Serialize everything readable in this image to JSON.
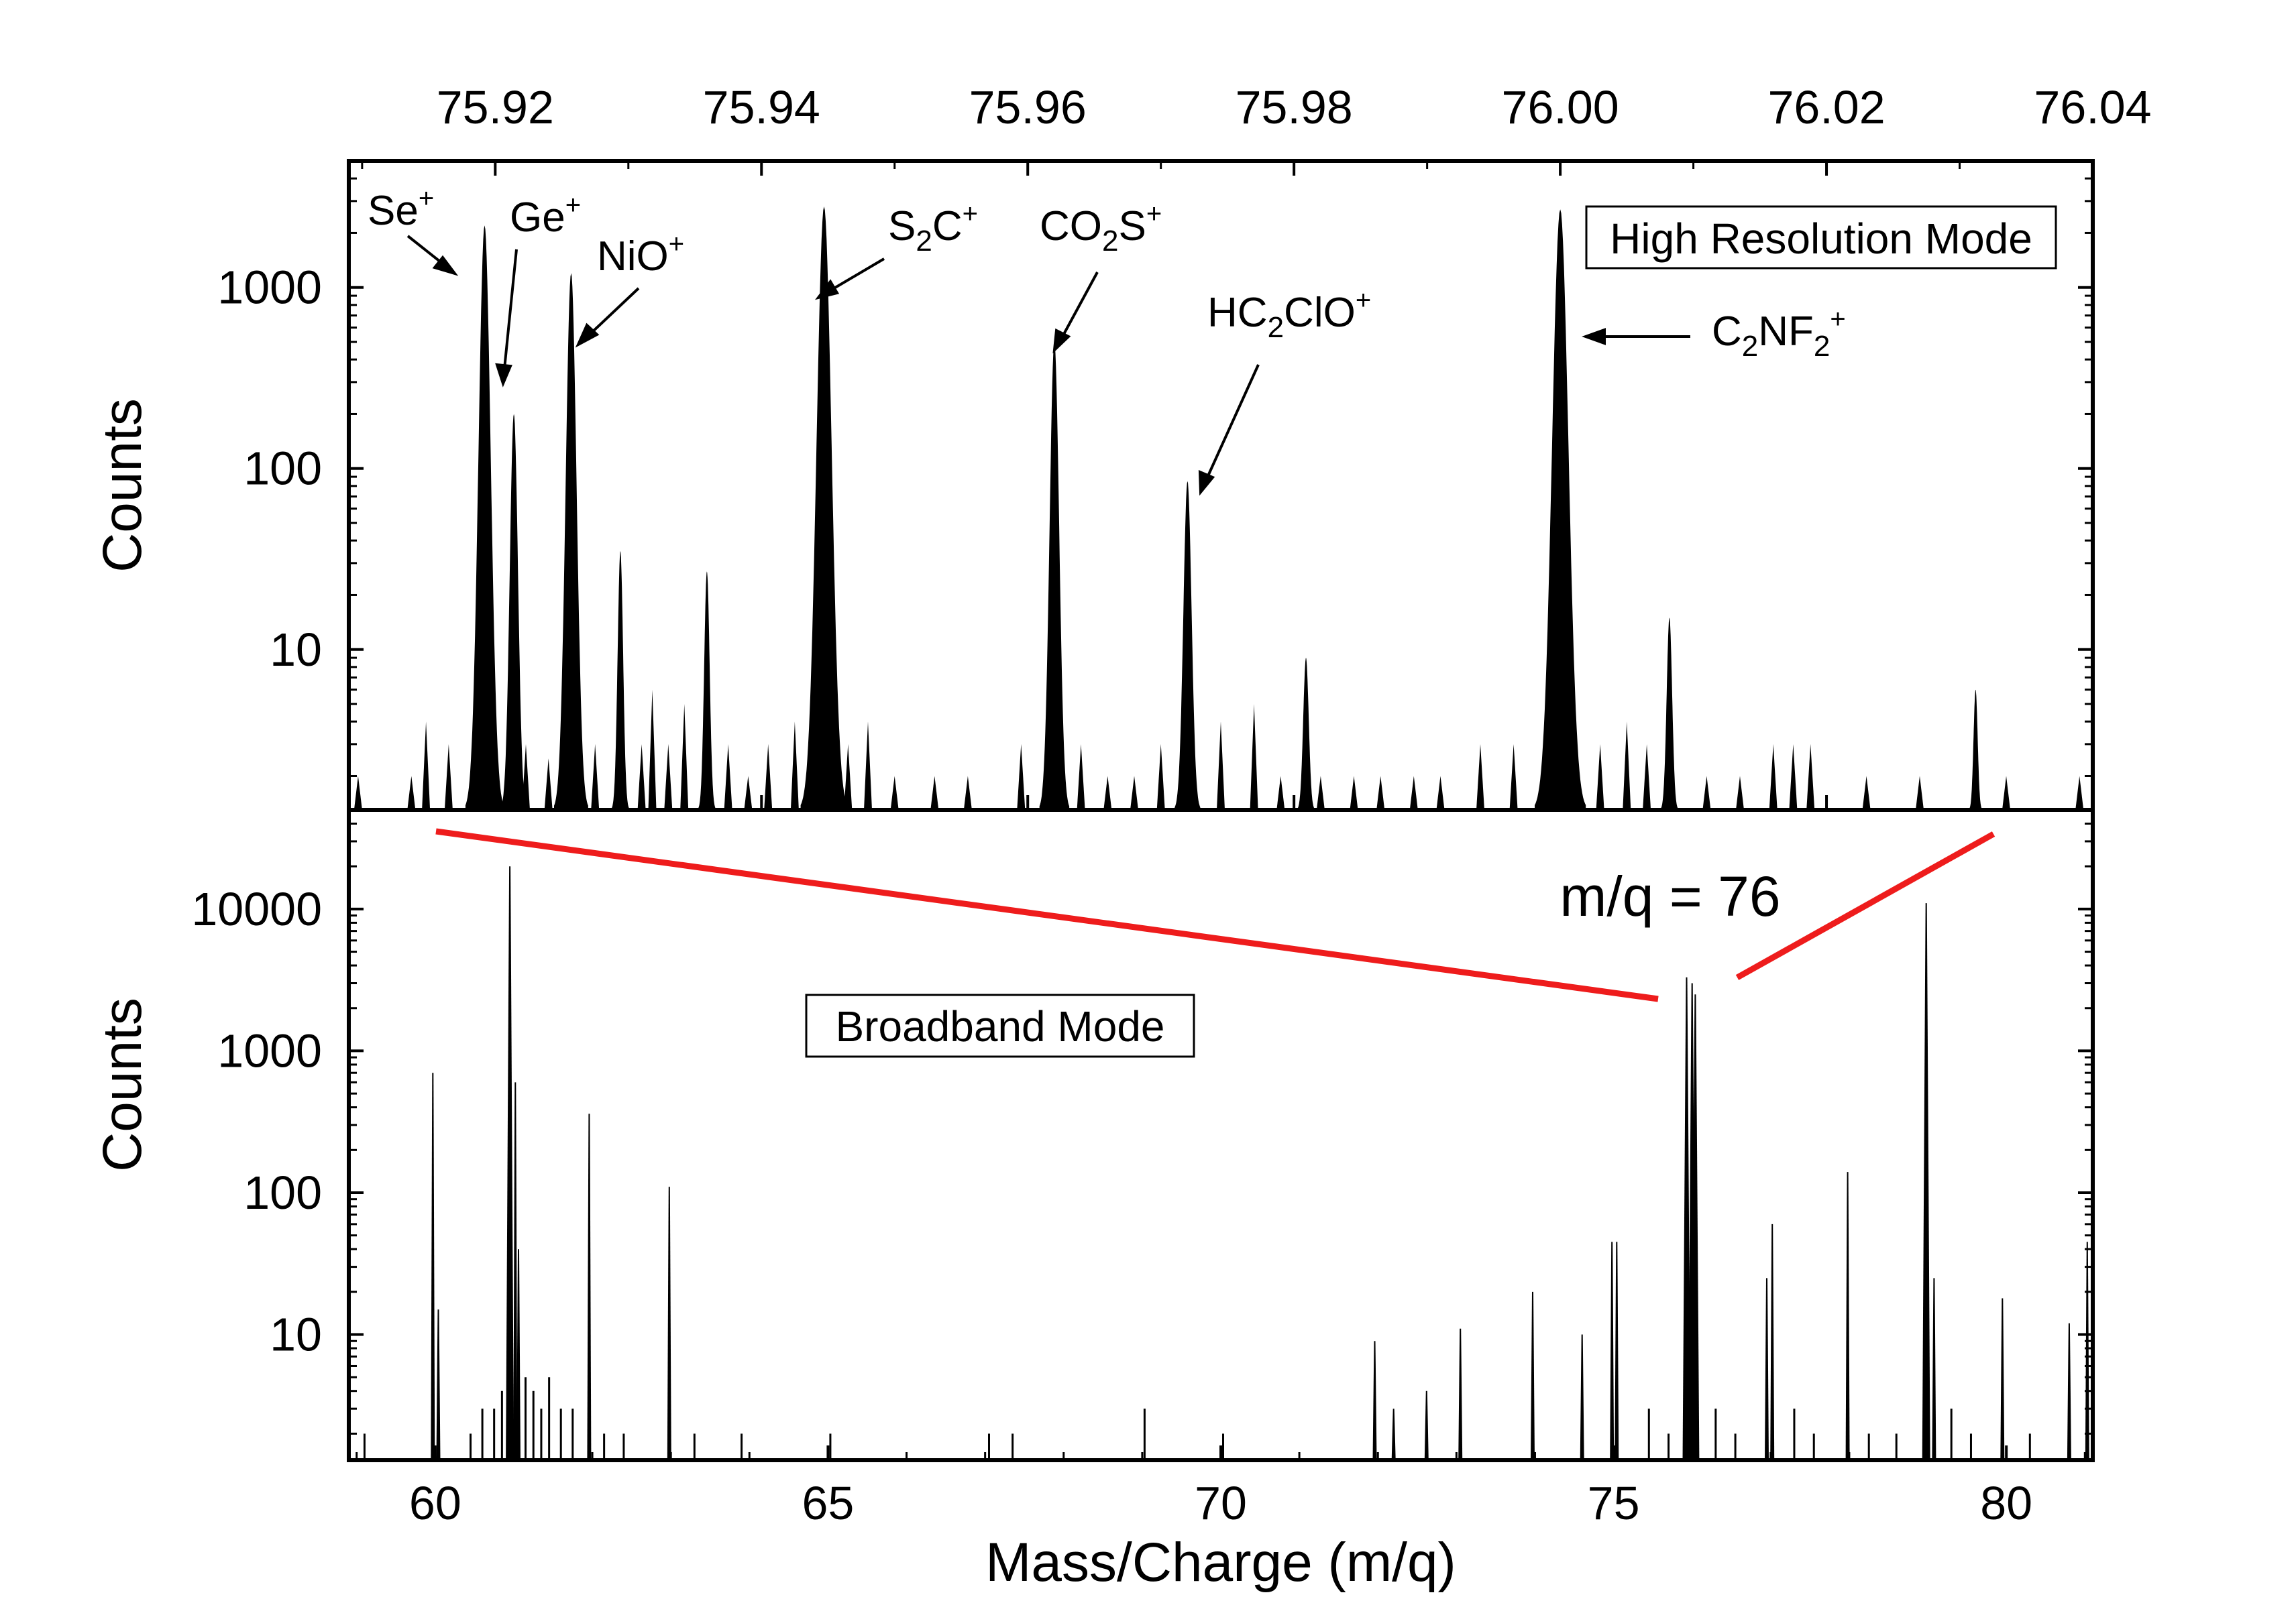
{
  "chart_data": [
    {
      "panel": "top",
      "type": "area",
      "xlabel": "",
      "ylabel": "Counts",
      "y_scale": "log",
      "x_range": [
        75.909,
        76.04
      ],
      "y_range": [
        1.3,
        5000
      ],
      "x_ticks": [
        "75.92",
        "75.94",
        "75.96",
        "75.98",
        "76.00",
        "76.02",
        "76.04"
      ],
      "x_tick_values": [
        75.92,
        75.94,
        75.96,
        75.98,
        76.0,
        76.02,
        76.04
      ],
      "y_ticks": [
        "10",
        "100",
        "1000"
      ],
      "y_tick_values": [
        10,
        100,
        1000
      ],
      "box_label": "High Resolution Mode",
      "peaks": [
        {
          "x": 75.9192,
          "y": 2200,
          "w": 0.0009
        },
        {
          "x": 75.9214,
          "y": 200,
          "w": 0.0006
        },
        {
          "x": 75.9257,
          "y": 1200,
          "w": 0.0008
        },
        {
          "x": 75.9294,
          "y": 35,
          "w": 0.0004
        },
        {
          "x": 75.9359,
          "y": 27,
          "w": 0.0004
        },
        {
          "x": 75.9447,
          "y": 2800,
          "w": 0.0011
        },
        {
          "x": 75.962,
          "y": 500,
          "w": 0.0007
        },
        {
          "x": 75.972,
          "y": 85,
          "w": 0.0006
        },
        {
          "x": 75.9809,
          "y": 9,
          "w": 0.0004
        },
        {
          "x": 76.0,
          "y": 2700,
          "w": 0.0012
        },
        {
          "x": 76.0082,
          "y": 15,
          "w": 0.0004
        },
        {
          "x": 76.0312,
          "y": 6,
          "w": 0.0003
        }
      ],
      "noise": [
        {
          "x": 75.9097,
          "y": 2.0
        },
        {
          "x": 75.9137,
          "y": 2.0
        },
        {
          "x": 75.9148,
          "y": 4.0
        },
        {
          "x": 75.9165,
          "y": 3.0
        },
        {
          "x": 75.9223,
          "y": 3.0
        },
        {
          "x": 75.924,
          "y": 2.5
        },
        {
          "x": 75.9275,
          "y": 3.0
        },
        {
          "x": 75.931,
          "y": 3.0
        },
        {
          "x": 75.9318,
          "y": 6.0
        },
        {
          "x": 75.933,
          "y": 3.0
        },
        {
          "x": 75.9342,
          "y": 5.0
        },
        {
          "x": 75.9375,
          "y": 3.0
        },
        {
          "x": 75.939,
          "y": 2.0
        },
        {
          "x": 75.9405,
          "y": 3.0
        },
        {
          "x": 75.9425,
          "y": 4.0
        },
        {
          "x": 75.9465,
          "y": 3.0
        },
        {
          "x": 75.948,
          "y": 4.0
        },
        {
          "x": 75.95,
          "y": 2.0
        },
        {
          "x": 75.953,
          "y": 2.0
        },
        {
          "x": 75.9555,
          "y": 2.0
        },
        {
          "x": 75.9595,
          "y": 3.0
        },
        {
          "x": 75.964,
          "y": 3.0
        },
        {
          "x": 75.966,
          "y": 2.0
        },
        {
          "x": 75.968,
          "y": 2.0
        },
        {
          "x": 75.97,
          "y": 3.0
        },
        {
          "x": 75.9745,
          "y": 4.0
        },
        {
          "x": 75.977,
          "y": 5.0
        },
        {
          "x": 75.979,
          "y": 2.0
        },
        {
          "x": 75.982,
          "y": 2.0
        },
        {
          "x": 75.9845,
          "y": 2.0
        },
        {
          "x": 75.9865,
          "y": 2.0
        },
        {
          "x": 75.989,
          "y": 2.0
        },
        {
          "x": 75.991,
          "y": 2.0
        },
        {
          "x": 75.994,
          "y": 3.0
        },
        {
          "x": 75.9965,
          "y": 3.0
        },
        {
          "x": 76.003,
          "y": 3.0
        },
        {
          "x": 76.005,
          "y": 4.0
        },
        {
          "x": 76.0065,
          "y": 3.0
        },
        {
          "x": 76.011,
          "y": 2.0
        },
        {
          "x": 76.0135,
          "y": 2.0
        },
        {
          "x": 76.016,
          "y": 3.0
        },
        {
          "x": 76.0175,
          "y": 3.0
        },
        {
          "x": 76.0188,
          "y": 3.0
        },
        {
          "x": 76.023,
          "y": 2.0
        },
        {
          "x": 76.027,
          "y": 2.0
        },
        {
          "x": 76.0335,
          "y": 2.0
        },
        {
          "x": 76.039,
          "y": 2.0
        }
      ],
      "annotations": [
        {
          "base": "Se",
          "sub": "",
          "sup": "+"
        },
        {
          "base": "Ge",
          "sub": "",
          "sup": "+"
        },
        {
          "base": "NiO",
          "sub": "",
          "sup": "+"
        },
        {
          "base": "S",
          "sub": "2",
          "tail": "C",
          "sup": "+"
        },
        {
          "base": "CO",
          "sub": "2",
          "tail": "S",
          "sup": "+"
        },
        {
          "base": "HC",
          "sub": "2",
          "tail": "ClO",
          "sup": "+"
        },
        {
          "base": "C",
          "sub": "2",
          "tail": "NF",
          "sub2": "2",
          "sup": "+"
        }
      ]
    },
    {
      "panel": "bottom",
      "type": "bar",
      "xlabel": "Mass/Charge (m/q)",
      "ylabel": "Counts",
      "y_scale": "log",
      "x_range": [
        58.9,
        81.1
      ],
      "y_range": [
        1.3,
        50000
      ],
      "x_ticks": [
        "60",
        "65",
        "70",
        "75",
        "80"
      ],
      "x_tick_values": [
        60,
        65,
        70,
        75,
        80
      ],
      "y_ticks": [
        "10",
        "100",
        "1000",
        "10000"
      ],
      "y_tick_values": [
        10,
        100,
        1000,
        10000
      ],
      "box_label": "Broadband Mode",
      "zoom_label": "m/q = 76",
      "peaks": [
        {
          "x": 59.97,
          "y": 700
        },
        {
          "x": 60.04,
          "y": 15
        },
        {
          "x": 60.95,
          "y": 20000
        },
        {
          "x": 61.02,
          "y": 600
        },
        {
          "x": 61.06,
          "y": 40
        },
        {
          "x": 61.96,
          "y": 360
        },
        {
          "x": 62.98,
          "y": 110
        },
        {
          "x": 71.96,
          "y": 9
        },
        {
          "x": 72.2,
          "y": 3
        },
        {
          "x": 72.62,
          "y": 4
        },
        {
          "x": 73.05,
          "y": 11
        },
        {
          "x": 73.97,
          "y": 20
        },
        {
          "x": 74.6,
          "y": 10
        },
        {
          "x": 74.98,
          "y": 45
        },
        {
          "x": 75.04,
          "y": 45
        },
        {
          "x": 75.93,
          "y": 3300
        },
        {
          "x": 76.0,
          "y": 3000
        },
        {
          "x": 76.04,
          "y": 2500
        },
        {
          "x": 76.95,
          "y": 25
        },
        {
          "x": 77.02,
          "y": 60
        },
        {
          "x": 77.98,
          "y": 140
        },
        {
          "x": 78.98,
          "y": 11000
        },
        {
          "x": 79.08,
          "y": 25
        },
        {
          "x": 79.95,
          "y": 18
        },
        {
          "x": 80.8,
          "y": 12
        },
        {
          "x": 81.03,
          "y": 45
        }
      ],
      "noise": [
        {
          "x": 59.1,
          "y": 2
        },
        {
          "x": 60.45,
          "y": 2
        },
        {
          "x": 60.6,
          "y": 3
        },
        {
          "x": 60.75,
          "y": 3
        },
        {
          "x": 60.85,
          "y": 4
        },
        {
          "x": 61.15,
          "y": 5
        },
        {
          "x": 61.25,
          "y": 4
        },
        {
          "x": 61.35,
          "y": 3
        },
        {
          "x": 61.45,
          "y": 5
        },
        {
          "x": 61.6,
          "y": 3
        },
        {
          "x": 61.75,
          "y": 3
        },
        {
          "x": 62.15,
          "y": 2
        },
        {
          "x": 62.4,
          "y": 2
        },
        {
          "x": 63.3,
          "y": 2
        },
        {
          "x": 63.9,
          "y": 2
        },
        {
          "x": 65.03,
          "y": 2
        },
        {
          "x": 67.05,
          "y": 2
        },
        {
          "x": 67.35,
          "y": 2
        },
        {
          "x": 69.03,
          "y": 3
        },
        {
          "x": 70.03,
          "y": 2
        },
        {
          "x": 75.45,
          "y": 3
        },
        {
          "x": 75.7,
          "y": 2
        },
        {
          "x": 76.3,
          "y": 3
        },
        {
          "x": 76.55,
          "y": 2
        },
        {
          "x": 77.3,
          "y": 3
        },
        {
          "x": 77.55,
          "y": 2
        },
        {
          "x": 78.25,
          "y": 2
        },
        {
          "x": 78.6,
          "y": 2
        },
        {
          "x": 79.3,
          "y": 3
        },
        {
          "x": 79.55,
          "y": 2
        },
        {
          "x": 80.3,
          "y": 2
        }
      ]
    }
  ]
}
